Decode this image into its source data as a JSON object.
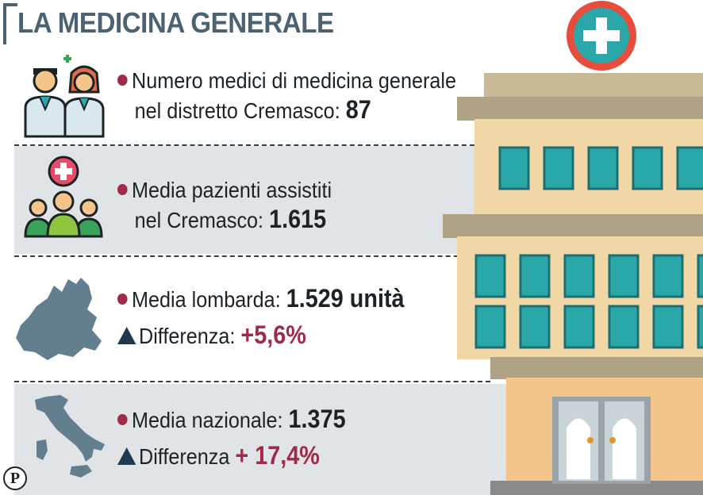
{
  "title": "LA MEDICINA GENERALE",
  "rows": [
    {
      "line1": "Numero medici di medicina generale",
      "line2_text": "nel distretto Cremasco:",
      "line2_value": "87"
    },
    {
      "line1": "Media pazienti assistiti",
      "line2_text": "nel Cremasco:",
      "line2_value": "1.615"
    },
    {
      "line1_text": "Media lombarda:",
      "line1_value": "1.529 unità",
      "line2_text": "Differenza:",
      "line2_value": "+5,6%"
    },
    {
      "line1_text": "Media nazionale:",
      "line1_value": "1.375",
      "line2_text": "Differenza",
      "line2_value": "+ 17,4%"
    }
  ],
  "logo_letter": "P",
  "icons": [
    "doctors-icon",
    "patients-icon",
    "lombardia-map-icon",
    "italy-map-icon",
    "hospital-building-icon"
  ],
  "colors": {
    "title": "#4b6272",
    "accent_red": "#a02a4a",
    "triangle": "#1f3a4f",
    "band": "#e1e4e7",
    "building": "#f1d7a6",
    "window": "#2aa7a9"
  }
}
